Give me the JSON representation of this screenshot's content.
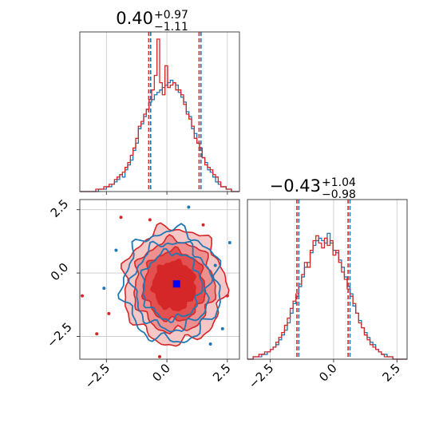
{
  "chart_data": [
    {
      "type": "histogram",
      "panel": "top-left",
      "title": {
        "median": "0.40",
        "plus": "+0.97",
        "minus": "−1.11"
      },
      "xlim": [
        -3.6,
        3.0
      ],
      "xticks": [
        -2.5,
        0.0,
        2.5
      ],
      "grid": true,
      "quantile_lines": {
        "lower": -0.71,
        "median": 0.4,
        "upper": 1.37
      },
      "series": [
        {
          "name": "",
          "color": "#1f77b4",
          "values": [
            0,
            0,
            0,
            0,
            0,
            0,
            0,
            1,
            1,
            1,
            2,
            2,
            3,
            4,
            5,
            7,
            6,
            9,
            11,
            13,
            17,
            20,
            26,
            28,
            31,
            34,
            37,
            38,
            40,
            41,
            42,
            43,
            44,
            45,
            46,
            45,
            44,
            41,
            39,
            37,
            33,
            31,
            26,
            24,
            20,
            17,
            14,
            12,
            9,
            8,
            6,
            4,
            3,
            2,
            2,
            1,
            1,
            0,
            0,
            0
          ]
        },
        {
          "name": "",
          "color": "#d62728",
          "values": [
            0,
            0,
            0,
            0,
            0,
            0,
            1,
            1,
            1,
            2,
            2,
            3,
            3,
            5,
            6,
            7,
            8,
            10,
            12,
            15,
            18,
            22,
            27,
            29,
            32,
            34,
            38,
            42,
            48,
            63,
            45,
            40,
            52,
            43,
            44,
            45,
            42,
            42,
            40,
            36,
            32,
            30,
            27,
            22,
            20,
            18,
            14,
            11,
            10,
            9,
            7,
            6,
            4,
            2,
            2,
            1,
            1,
            0,
            0,
            0
          ]
        }
      ]
    },
    {
      "type": "heatmap",
      "panel": "bottom-left",
      "description_kind": "2d-contour",
      "xlim": [
        -3.6,
        3.0
      ],
      "ylim": [
        -3.4,
        2.9
      ],
      "xticks": [
        -2.5,
        0.0,
        2.5
      ],
      "yticks": [
        -2.5,
        0.0,
        2.5
      ],
      "xtick_labels": [
        "−2.5",
        "0.0",
        "2.5"
      ],
      "ytick_labels": [
        "−2.5",
        "0.0",
        "2.5"
      ],
      "grid": true,
      "marker": {
        "x": 0.4,
        "y": -0.43,
        "color": "#0000ff"
      },
      "series": [
        {
          "name": "",
          "color": "#1f77b4",
          "center": [
            0.2,
            -0.5
          ],
          "spread": [
            1.05,
            1.15
          ]
        },
        {
          "name": "",
          "color": "#d62728",
          "center": [
            0.3,
            -0.5
          ],
          "spread": [
            1.1,
            1.2
          ]
        }
      ]
    },
    {
      "type": "histogram",
      "panel": "bottom-right",
      "title": {
        "median": "−0.43",
        "plus": "+1.04",
        "minus": "−0.98"
      },
      "xlim": [
        -3.4,
        2.9
      ],
      "xticks": [
        -2.5,
        0.0,
        2.5
      ],
      "xtick_labels": [
        "−2.5",
        "0.0",
        "2.5"
      ],
      "grid": true,
      "quantile_lines": {
        "lower": -1.41,
        "median": -0.43,
        "upper": 0.61
      },
      "series": [
        {
          "name": "",
          "color": "#1f77b4",
          "values": [
            0,
            0,
            1,
            1,
            1,
            2,
            2,
            3,
            4,
            5,
            6,
            8,
            10,
            12,
            15,
            19,
            23,
            26,
            30,
            34,
            38,
            40,
            44,
            47,
            49,
            50,
            49,
            48,
            52,
            48,
            45,
            44,
            41,
            38,
            34,
            30,
            27,
            22,
            19,
            16,
            13,
            11,
            9,
            7,
            6,
            4,
            3,
            2,
            2,
            1,
            1,
            0,
            0,
            0,
            0,
            0
          ]
        },
        {
          "name": "",
          "color": "#d62728",
          "values": [
            0,
            0,
            1,
            1,
            2,
            2,
            3,
            3,
            4,
            5,
            7,
            9,
            11,
            14,
            17,
            21,
            24,
            27,
            31,
            35,
            40,
            38,
            45,
            49,
            51,
            48,
            46,
            50,
            47,
            49,
            43,
            45,
            40,
            36,
            33,
            29,
            26,
            23,
            19,
            15,
            13,
            10,
            8,
            6,
            5,
            4,
            3,
            2,
            1,
            1,
            1,
            0,
            0,
            0,
            0,
            0
          ]
        }
      ]
    }
  ]
}
